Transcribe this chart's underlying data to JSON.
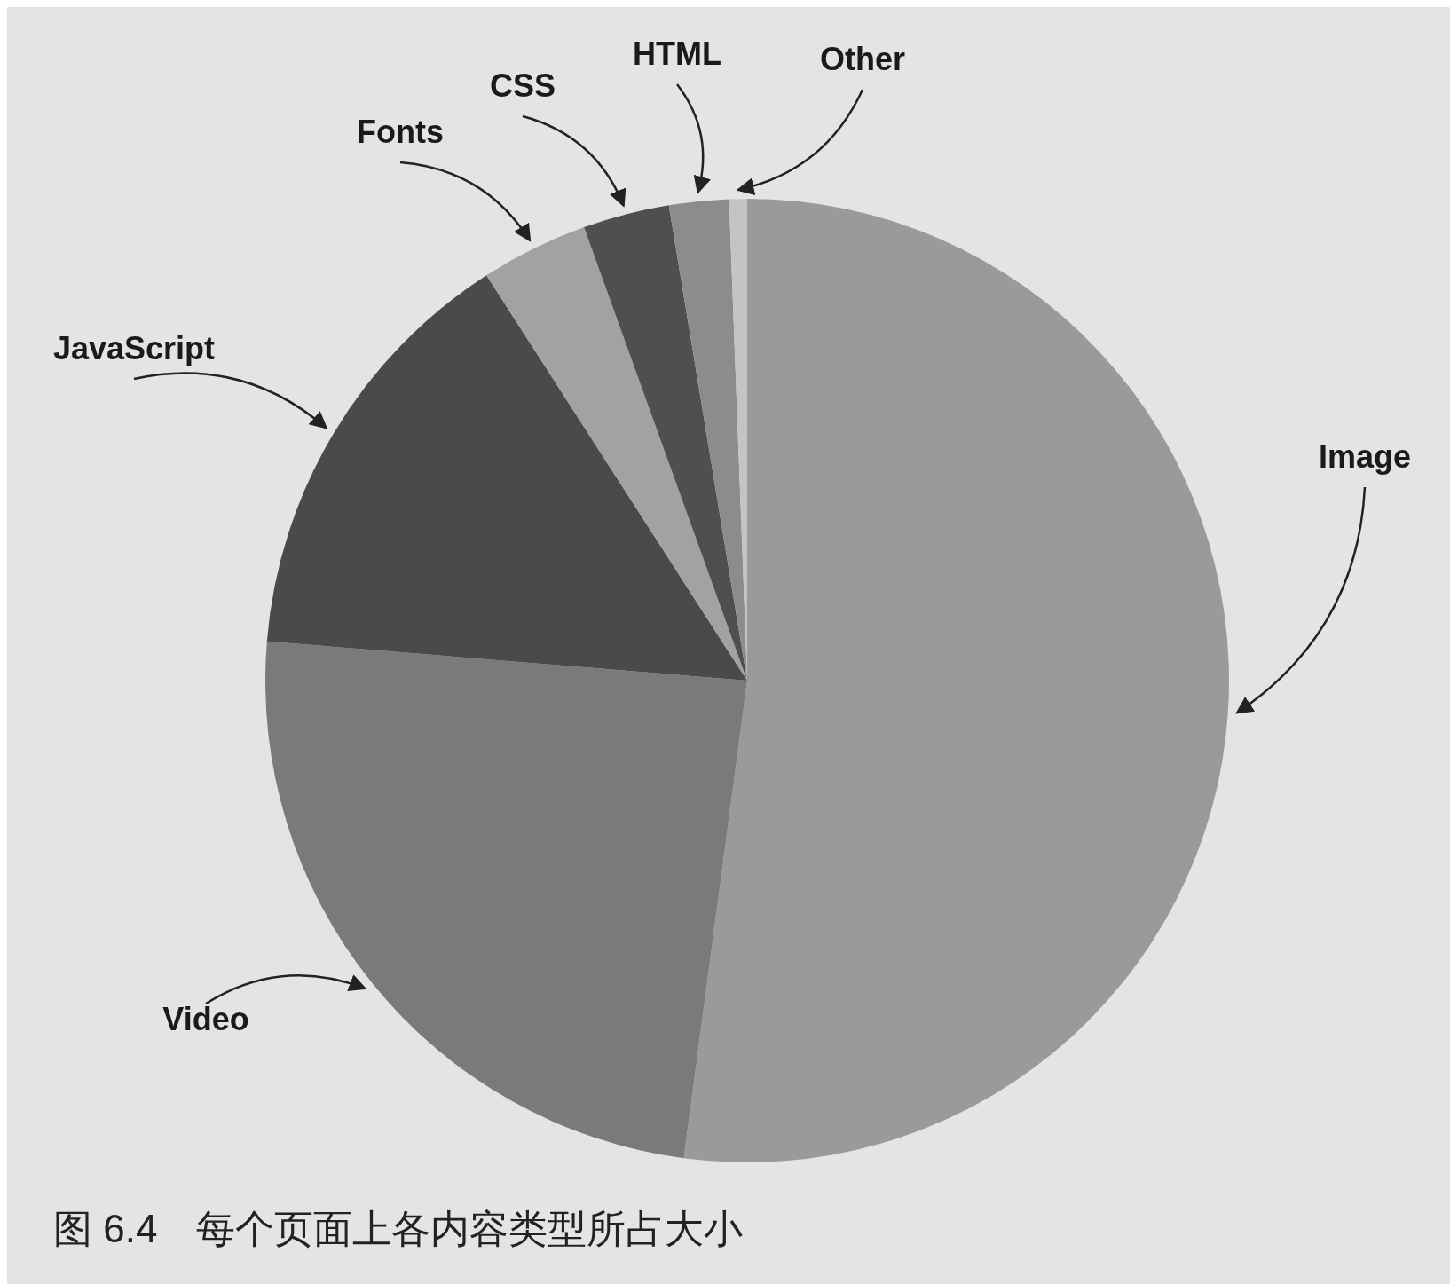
{
  "chart_data": {
    "type": "pie",
    "title": "图 6.4　每个页面上各内容类型所占大小",
    "categories": [
      "Image",
      "Video",
      "JavaScript",
      "Fonts",
      "CSS",
      "HTML",
      "Other"
    ],
    "values": [
      52.1,
      24.2,
      14.6,
      3.6,
      2.9,
      2.0,
      0.6
    ],
    "colors": [
      "#9a9a9a",
      "#7a7a7a",
      "#4a4a4a",
      "#a2a2a2",
      "#4f4f4f",
      "#8c8c8c",
      "#c4c4c4"
    ]
  }
}
